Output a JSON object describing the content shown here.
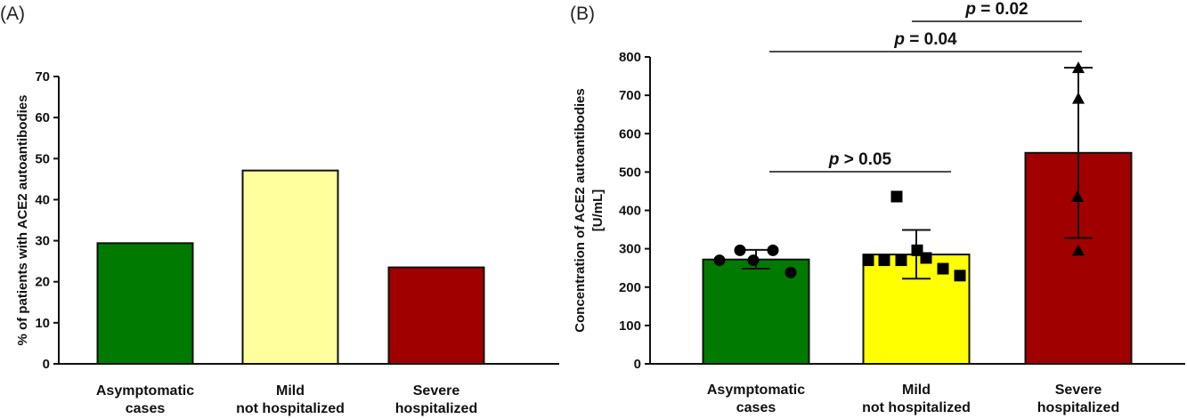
{
  "chart_data": [
    {
      "panel": "(A)",
      "type": "bar",
      "categories": [
        [
          "Asymptomatic",
          "cases"
        ],
        [
          "Mild",
          "not hospitalized"
        ],
        [
          "Severe",
          "hospitalized"
        ]
      ],
      "values": [
        29.4,
        47.1,
        23.5
      ],
      "colors": [
        "#007a00",
        "#ffff9e",
        "#a00000"
      ],
      "ylabel": "% of patients with ACE2 autoantibodies",
      "ylim": [
        0,
        70
      ],
      "yticks": [
        0,
        10,
        20,
        30,
        40,
        50,
        60,
        70
      ],
      "grid": false
    },
    {
      "panel": "(B)",
      "type": "bar",
      "categories": [
        [
          "Asymptomatic",
          "cases"
        ],
        [
          "Mild",
          "not hospitalized"
        ],
        [
          "Severe",
          "hospitalized"
        ]
      ],
      "values": [
        272,
        285,
        550
      ],
      "error": [
        [
          248,
          297
        ],
        [
          222,
          349
        ],
        [
          328,
          772
        ]
      ],
      "points": [
        [
          270,
          296,
          270,
          296,
          238
        ],
        [
          436,
          270,
          270,
          270,
          296,
          276,
          248,
          230
        ],
        [
          772,
          692,
          436,
          296
        ]
      ],
      "markers": [
        "circle",
        "square",
        "triangle"
      ],
      "colors": [
        "#007a00",
        "#ffff00",
        "#a00000"
      ],
      "ylabel": [
        "Concentration of ACE2 autoantibodies",
        "[U/mL]"
      ],
      "ylim": [
        0,
        800
      ],
      "yticks": [
        0,
        100,
        200,
        300,
        400,
        500,
        600,
        700,
        800
      ],
      "grid": false,
      "comparisons": [
        {
          "groups": [
            0,
            1
          ],
          "label": "> 0.05"
        },
        {
          "groups": [
            0,
            2
          ],
          "label": "= 0.04"
        },
        {
          "groups": [
            1,
            2
          ],
          "label": "= 0.02"
        }
      ],
      "p_symbol": "p"
    }
  ]
}
